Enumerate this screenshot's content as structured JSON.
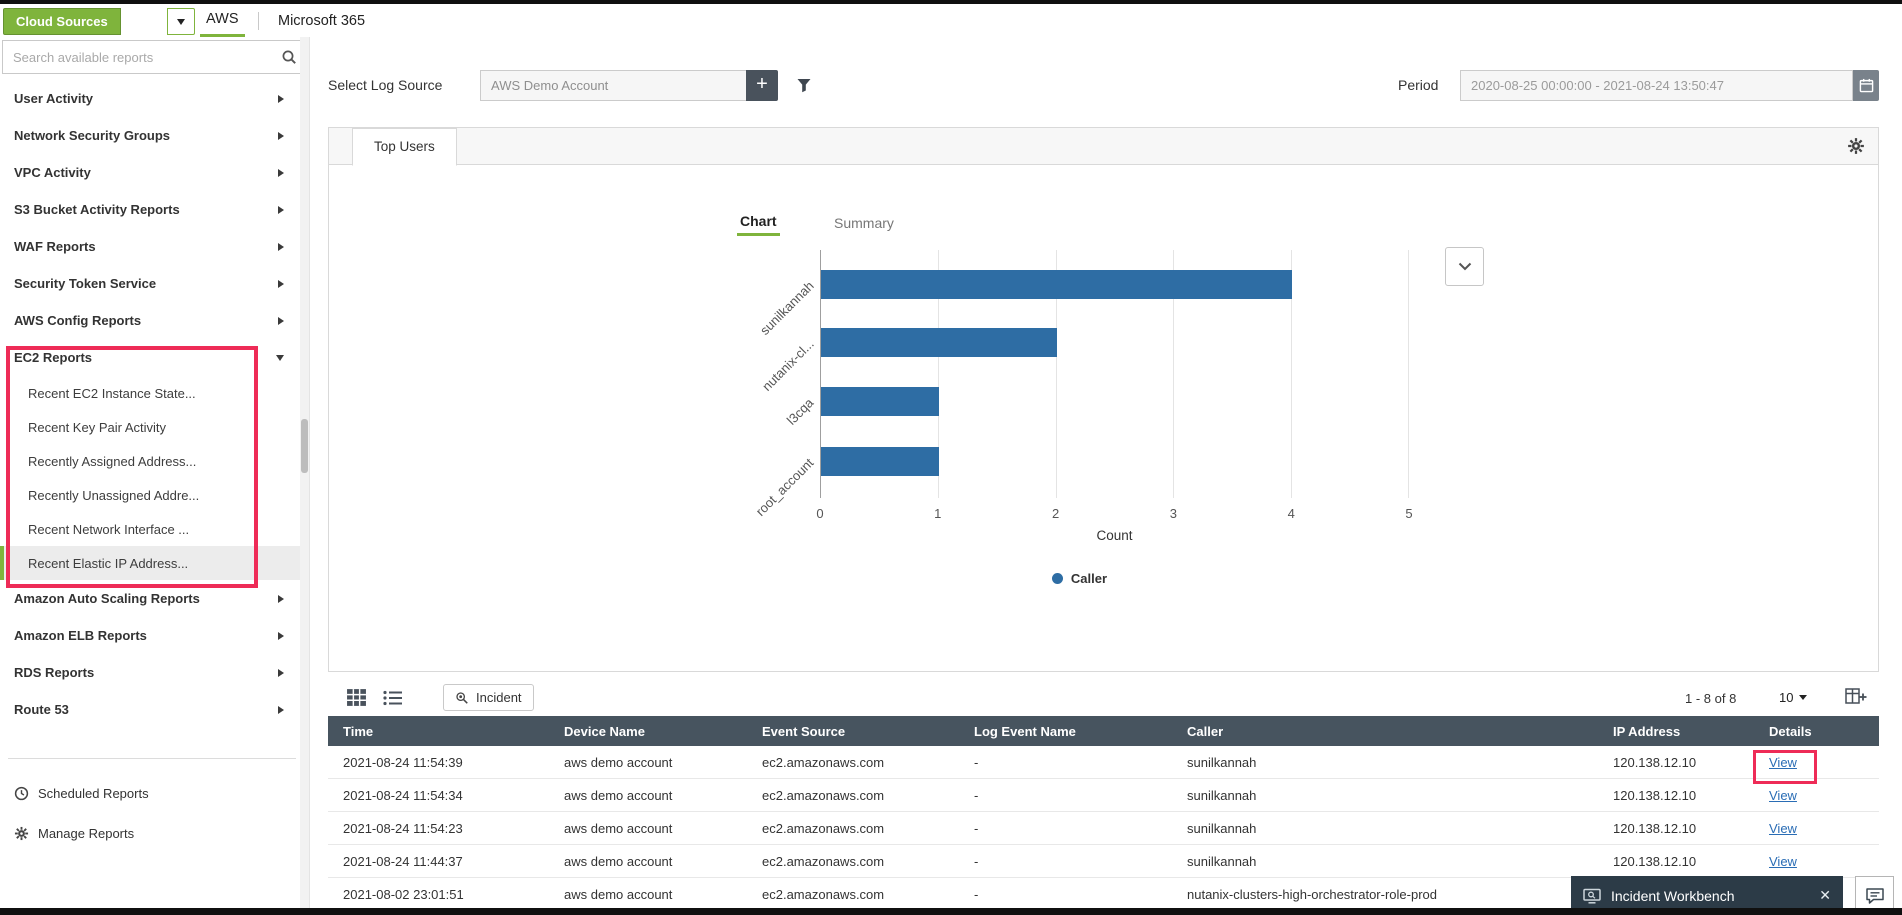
{
  "colors": {
    "accent_green": "#7fb43c",
    "table_header_bg": "#47545f",
    "bar_blue": "#2e6da4",
    "link_blue": "#2a6db5",
    "annotation_red": "#ee2b57",
    "workbench_bg": "#2c3b47",
    "dark_button": "#49525c"
  },
  "top_bar": {
    "cloud_sources_button": "Cloud Sources",
    "tabs": [
      "AWS",
      "Microsoft 365"
    ]
  },
  "sidebar": {
    "search_placeholder": "Search available reports",
    "items": [
      "User Activity",
      "Network Security Groups",
      "VPC Activity",
      "S3 Bucket Activity Reports",
      "WAF Reports",
      "Security Token Service",
      "AWS Config Reports"
    ],
    "ec2_reports": {
      "label": "EC2 Reports",
      "children": [
        "Recent EC2 Instance State...",
        "Recent Key Pair Activity",
        "Recently Assigned Address...",
        "Recently Unassigned Addre...",
        "Recent Network Interface ...",
        "Recent Elastic IP Address..."
      ],
      "selected_child": "Recent Elastic IP Address..."
    },
    "items_after": [
      "Amazon Auto Scaling Reports",
      "Amazon ELB Reports",
      "RDS Reports",
      "Route 53"
    ],
    "footer_items": [
      "Scheduled Reports",
      "Manage Reports"
    ]
  },
  "filters": {
    "select_log_source_label": "Select Log Source",
    "log_source_value": "AWS Demo Account",
    "add_button": "+",
    "period_label": "Period",
    "period_value": "2020-08-25 00:00:00 - 2021-08-24 13:50:47"
  },
  "report_panel": {
    "tab_label": "Top Users",
    "view_tabs": [
      "Chart",
      "Summary"
    ]
  },
  "chart_data": {
    "type": "bar",
    "orientation": "horizontal",
    "title": "Top Users",
    "categories": [
      "sunilkannah",
      "nutanix-cl...",
      "l3cqa",
      "root_account"
    ],
    "values": [
      4,
      2,
      1,
      1
    ],
    "series_name": "Caller",
    "xlabel": "Count",
    "xlim": [
      0,
      5
    ],
    "xticks": [
      0,
      1,
      2,
      3,
      4,
      5
    ],
    "grid": true,
    "legend_position": "bottom",
    "bar_color": "#2e6da4"
  },
  "table_section": {
    "incident_button": "Incident",
    "pagination": "1 - 8 of 8",
    "page_size": "10",
    "headers": [
      "Time",
      "Device Name",
      "Event Source",
      "Log Event Name",
      "Caller",
      "IP Address",
      "Details"
    ],
    "rows": [
      [
        "2021-08-24 11:54:39",
        "aws demo account",
        "ec2.amazonaws.com",
        "-",
        "sunilkannah",
        "120.138.12.10",
        "View"
      ],
      [
        "2021-08-24 11:54:34",
        "aws demo account",
        "ec2.amazonaws.com",
        "-",
        "sunilkannah",
        "120.138.12.10",
        "View"
      ],
      [
        "2021-08-24 11:54:23",
        "aws demo account",
        "ec2.amazonaws.com",
        "-",
        "sunilkannah",
        "120.138.12.10",
        "View"
      ],
      [
        "2021-08-24 11:44:37",
        "aws demo account",
        "ec2.amazonaws.com",
        "-",
        "sunilkannah",
        "120.138.12.10",
        "View"
      ],
      [
        "2021-08-02 23:01:51",
        "aws demo account",
        "ec2.amazonaws.com",
        "-",
        "nutanix-clusters-high-orchestrator-role-prod",
        "",
        ""
      ]
    ]
  },
  "workbench": {
    "label": "Incident Workbench",
    "close_glyph": "✕"
  },
  "icons": {
    "search": "magnifier",
    "filter": "funnel",
    "calendar": "calendar",
    "settings": "gear",
    "grid_view": "table-grid",
    "list_view": "list-bullets",
    "incident": "magnifier-badge",
    "add_column": "table-plus",
    "chevron_down": "chevron",
    "clock": "clock",
    "chat": "speech-bubble",
    "close": "✕",
    "plus": "+"
  }
}
